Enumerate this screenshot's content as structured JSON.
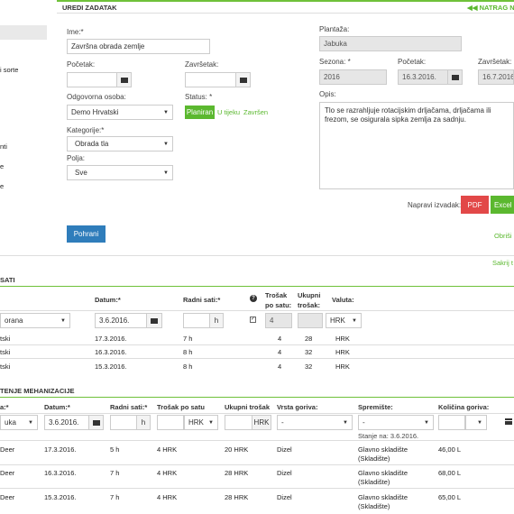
{
  "header": {
    "title": "UREDI ZADATAK",
    "back_label": "NATRAG N"
  },
  "sidebar": {
    "items": [
      "i sorte",
      "nti",
      "e",
      "e"
    ]
  },
  "form": {
    "ime_label": "Ime:*",
    "ime_value": "Završna obrada zemlje",
    "pocetak_label": "Početak:",
    "zavrsetak_label": "Završetak:",
    "odgovorna_label": "Odgovorna osoba:",
    "odgovorna_value": "Demo Hrvatski",
    "status_label": "Status: *",
    "status_options": [
      "Planiran",
      "U tijeku",
      "Završen"
    ],
    "kategorije_label": "Kategorije:*",
    "kategorije_value": "Obrada tla",
    "polja_label": "Polja:",
    "polja_value": "Sve",
    "save_label": "Pohrani"
  },
  "right": {
    "plantaza_label": "Plantaža:",
    "plantaza_value": "Jabuka",
    "sezona_label": "Sezona: *",
    "sezona_value": "2016",
    "pocetak_label": "Početak:",
    "pocetak_value": "16.3.2016.",
    "zavrsetak_label": "Završetak:",
    "zavrsetak_value": "16.7.2016",
    "opis_label": "Opis:",
    "opis_value": "Tlo se razrahljuje rotacijskim drljačama, drljačama ili frezom, se osigurala sipka zemlja za sadnju.",
    "report_label": "Napravi izvadak:",
    "pdf_label": "PDF",
    "excel_label": "Excel",
    "obrisi_label": "Obriši",
    "sakrij_label": "Sakrij t"
  },
  "sati": {
    "title": "SATI",
    "headers": {
      "datum": "Datum:*",
      "radni_sati": "Radni sati:*",
      "trosak_po_satu": "Trošak po satu:",
      "ukupni_trosak": "Ukupni trošak:",
      "valuta": "Valuta:"
    },
    "input": {
      "worker": "orana",
      "date": "3.6.2016.",
      "hours_unit": "h",
      "trosak": "4",
      "valuta": "HRK"
    },
    "rows": [
      {
        "name": "tski",
        "date": "17.3.2016.",
        "hours": "7 h",
        "rate": "4",
        "total": "28",
        "currency": "HRK"
      },
      {
        "name": "tski",
        "date": "16.3.2016.",
        "hours": "8 h",
        "rate": "4",
        "total": "32",
        "currency": "HRK"
      },
      {
        "name": "tski",
        "date": "15.3.2016.",
        "hours": "8 h",
        "rate": "4",
        "total": "32",
        "currency": "HRK"
      }
    ]
  },
  "meh": {
    "title": "TENJE MEHANIZACIJE",
    "headers": {
      "a": "a:*",
      "datum": "Datum:*",
      "radni_sati": "Radni sati:*",
      "trosak_po_satu": "Trošak po satu",
      "ukupni_trosak": "Ukupni trošak",
      "vrsta_goriva": "Vrsta goriva:",
      "spremiste": "Spremište:",
      "kolicina": "Količina goriva:"
    },
    "input": {
      "machine": "uka",
      "date": "3.6.2016.",
      "hours_unit": "h",
      "rate_unit": "HRK",
      "total_unit": "HRK",
      "fuel": "-",
      "storage": "-",
      "stock_note": "Stanje na: 3.6.2016."
    },
    "rows": [
      {
        "name": "Deer",
        "date": "17.3.2016.",
        "hours": "5 h",
        "rate": "4 HRK",
        "total": "20 HRK",
        "fuel": "Dizel",
        "storage1": "Glavno skladište",
        "storage2": "(Skladište)",
        "qty": "46,00 L"
      },
      {
        "name": "Deer",
        "date": "16.3.2016.",
        "hours": "7 h",
        "rate": "4 HRK",
        "total": "28 HRK",
        "fuel": "Dizel",
        "storage1": "Glavno skladište",
        "storage2": "(Skladište)",
        "qty": "68,00 L"
      },
      {
        "name": "Deer",
        "date": "15.3.2016.",
        "hours": "7 h",
        "rate": "4 HRK",
        "total": "28 HRK",
        "fuel": "Dizel",
        "storage1": "Glavno skladište",
        "storage2": "(Skladište)",
        "qty": "65,00 L"
      }
    ]
  }
}
